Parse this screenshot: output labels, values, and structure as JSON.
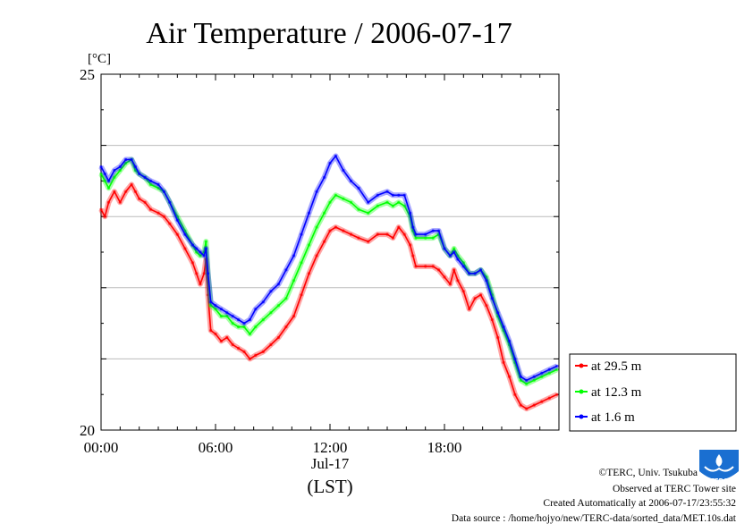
{
  "chart_data": {
    "type": "line",
    "title": "Air Temperature / 2006-07-17",
    "y_unit": "[°C]",
    "ylim": [
      20,
      25
    ],
    "y_ticks": [
      "25",
      "20"
    ],
    "xlim": [
      "00:00",
      "24:00"
    ],
    "x_ticks": [
      {
        "hour": 0,
        "label": "00:00"
      },
      {
        "hour": 6,
        "label": "06:00"
      },
      {
        "hour": 12,
        "label": "12:00"
      },
      {
        "hour": 18,
        "label": "18:00"
      }
    ],
    "x_date_label": "Jul-17",
    "x_axis_label": "(LST)",
    "grid": "horizontal",
    "legend_position": "right",
    "series": [
      {
        "name": "at 29.5 m",
        "color": "#ff0000",
        "points": [
          [
            0.0,
            23.1
          ],
          [
            0.2,
            23.0
          ],
          [
            0.4,
            23.2
          ],
          [
            0.7,
            23.35
          ],
          [
            1.0,
            23.2
          ],
          [
            1.3,
            23.35
          ],
          [
            1.6,
            23.45
          ],
          [
            1.8,
            23.35
          ],
          [
            2.0,
            23.25
          ],
          [
            2.3,
            23.2
          ],
          [
            2.6,
            23.1
          ],
          [
            3.0,
            23.05
          ],
          [
            3.3,
            23.0
          ],
          [
            3.6,
            22.9
          ],
          [
            4.0,
            22.75
          ],
          [
            4.4,
            22.55
          ],
          [
            4.8,
            22.35
          ],
          [
            5.0,
            22.2
          ],
          [
            5.2,
            22.05
          ],
          [
            5.4,
            22.2
          ],
          [
            5.5,
            22.4
          ],
          [
            5.6,
            21.9
          ],
          [
            5.75,
            21.4
          ],
          [
            6.0,
            21.35
          ],
          [
            6.3,
            21.25
          ],
          [
            6.6,
            21.3
          ],
          [
            6.9,
            21.2
          ],
          [
            7.2,
            21.15
          ],
          [
            7.5,
            21.1
          ],
          [
            7.8,
            21.0
          ],
          [
            8.1,
            21.05
          ],
          [
            8.5,
            21.1
          ],
          [
            8.9,
            21.2
          ],
          [
            9.3,
            21.3
          ],
          [
            9.7,
            21.45
          ],
          [
            10.1,
            21.6
          ],
          [
            10.5,
            21.9
          ],
          [
            10.9,
            22.2
          ],
          [
            11.3,
            22.45
          ],
          [
            11.7,
            22.65
          ],
          [
            12.0,
            22.8
          ],
          [
            12.3,
            22.85
          ],
          [
            12.7,
            22.8
          ],
          [
            13.1,
            22.75
          ],
          [
            13.5,
            22.7
          ],
          [
            14.0,
            22.65
          ],
          [
            14.5,
            22.75
          ],
          [
            15.0,
            22.75
          ],
          [
            15.3,
            22.7
          ],
          [
            15.6,
            22.85
          ],
          [
            15.9,
            22.75
          ],
          [
            16.2,
            22.6
          ],
          [
            16.35,
            22.45
          ],
          [
            16.5,
            22.3
          ],
          [
            17.0,
            22.3
          ],
          [
            17.4,
            22.3
          ],
          [
            17.7,
            22.25
          ],
          [
            18.0,
            22.15
          ],
          [
            18.3,
            22.05
          ],
          [
            18.5,
            22.25
          ],
          [
            18.7,
            22.1
          ],
          [
            19.0,
            21.95
          ],
          [
            19.3,
            21.7
          ],
          [
            19.6,
            21.85
          ],
          [
            19.9,
            21.9
          ],
          [
            20.2,
            21.75
          ],
          [
            20.5,
            21.55
          ],
          [
            20.8,
            21.3
          ],
          [
            21.1,
            20.95
          ],
          [
            21.4,
            20.75
          ],
          [
            21.7,
            20.5
          ],
          [
            22.0,
            20.35
          ],
          [
            22.3,
            20.3
          ],
          [
            22.7,
            20.35
          ],
          [
            23.1,
            20.4
          ],
          [
            23.5,
            20.45
          ],
          [
            23.9,
            20.5
          ]
        ]
      },
      {
        "name": "at 12.3 m",
        "color": "#00ff00",
        "points": [
          [
            0.0,
            23.6
          ],
          [
            0.2,
            23.5
          ],
          [
            0.4,
            23.4
          ],
          [
            0.7,
            23.55
          ],
          [
            1.0,
            23.65
          ],
          [
            1.3,
            23.75
          ],
          [
            1.6,
            23.8
          ],
          [
            1.8,
            23.65
          ],
          [
            2.0,
            23.6
          ],
          [
            2.3,
            23.55
          ],
          [
            2.6,
            23.45
          ],
          [
            3.0,
            23.4
          ],
          [
            3.3,
            23.35
          ],
          [
            3.6,
            23.2
          ],
          [
            4.0,
            23.0
          ],
          [
            4.4,
            22.8
          ],
          [
            4.8,
            22.6
          ],
          [
            5.0,
            22.5
          ],
          [
            5.2,
            22.45
          ],
          [
            5.4,
            22.5
          ],
          [
            5.5,
            22.65
          ],
          [
            5.6,
            22.2
          ],
          [
            5.75,
            21.75
          ],
          [
            6.0,
            21.7
          ],
          [
            6.3,
            21.6
          ],
          [
            6.6,
            21.6
          ],
          [
            6.9,
            21.5
          ],
          [
            7.2,
            21.45
          ],
          [
            7.5,
            21.45
          ],
          [
            7.8,
            21.35
          ],
          [
            8.1,
            21.45
          ],
          [
            8.5,
            21.55
          ],
          [
            8.9,
            21.65
          ],
          [
            9.3,
            21.75
          ],
          [
            9.7,
            21.85
          ],
          [
            10.1,
            22.1
          ],
          [
            10.5,
            22.35
          ],
          [
            10.9,
            22.6
          ],
          [
            11.3,
            22.85
          ],
          [
            11.7,
            23.05
          ],
          [
            12.0,
            23.2
          ],
          [
            12.3,
            23.3
          ],
          [
            12.7,
            23.25
          ],
          [
            13.1,
            23.2
          ],
          [
            13.5,
            23.1
          ],
          [
            14.0,
            23.05
          ],
          [
            14.5,
            23.15
          ],
          [
            15.0,
            23.2
          ],
          [
            15.3,
            23.15
          ],
          [
            15.6,
            23.2
          ],
          [
            15.9,
            23.15
          ],
          [
            16.2,
            23.0
          ],
          [
            16.35,
            22.8
          ],
          [
            16.5,
            22.7
          ],
          [
            17.0,
            22.7
          ],
          [
            17.4,
            22.7
          ],
          [
            17.7,
            22.75
          ],
          [
            18.0,
            22.55
          ],
          [
            18.3,
            22.45
          ],
          [
            18.5,
            22.55
          ],
          [
            18.7,
            22.45
          ],
          [
            19.0,
            22.35
          ],
          [
            19.3,
            22.2
          ],
          [
            19.6,
            22.2
          ],
          [
            19.9,
            22.25
          ],
          [
            20.2,
            22.15
          ],
          [
            20.5,
            21.9
          ],
          [
            20.8,
            21.6
          ],
          [
            21.1,
            21.4
          ],
          [
            21.4,
            21.2
          ],
          [
            21.7,
            20.95
          ],
          [
            22.0,
            20.7
          ],
          [
            22.3,
            20.65
          ],
          [
            22.7,
            20.7
          ],
          [
            23.1,
            20.75
          ],
          [
            23.5,
            20.8
          ],
          [
            23.9,
            20.85
          ]
        ]
      },
      {
        "name": "at 1.6 m",
        "color": "#0000ff",
        "points": [
          [
            0.0,
            23.7
          ],
          [
            0.2,
            23.6
          ],
          [
            0.4,
            23.5
          ],
          [
            0.7,
            23.65
          ],
          [
            1.0,
            23.7
          ],
          [
            1.3,
            23.8
          ],
          [
            1.6,
            23.8
          ],
          [
            1.8,
            23.7
          ],
          [
            2.0,
            23.6
          ],
          [
            2.3,
            23.55
          ],
          [
            2.6,
            23.5
          ],
          [
            3.0,
            23.45
          ],
          [
            3.3,
            23.35
          ],
          [
            3.6,
            23.2
          ],
          [
            4.0,
            22.95
          ],
          [
            4.4,
            22.75
          ],
          [
            4.8,
            22.6
          ],
          [
            5.0,
            22.55
          ],
          [
            5.2,
            22.5
          ],
          [
            5.4,
            22.45
          ],
          [
            5.5,
            22.55
          ],
          [
            5.6,
            22.2
          ],
          [
            5.75,
            21.8
          ],
          [
            6.0,
            21.75
          ],
          [
            6.3,
            21.7
          ],
          [
            6.6,
            21.65
          ],
          [
            6.9,
            21.6
          ],
          [
            7.2,
            21.55
          ],
          [
            7.5,
            21.5
          ],
          [
            7.8,
            21.55
          ],
          [
            8.1,
            21.7
          ],
          [
            8.5,
            21.8
          ],
          [
            8.9,
            21.95
          ],
          [
            9.3,
            22.05
          ],
          [
            9.7,
            22.25
          ],
          [
            10.1,
            22.45
          ],
          [
            10.5,
            22.75
          ],
          [
            10.9,
            23.05
          ],
          [
            11.3,
            23.35
          ],
          [
            11.7,
            23.55
          ],
          [
            12.0,
            23.75
          ],
          [
            12.3,
            23.85
          ],
          [
            12.7,
            23.65
          ],
          [
            13.1,
            23.5
          ],
          [
            13.5,
            23.4
          ],
          [
            14.0,
            23.2
          ],
          [
            14.5,
            23.3
          ],
          [
            15.0,
            23.35
          ],
          [
            15.3,
            23.3
          ],
          [
            15.6,
            23.3
          ],
          [
            15.9,
            23.3
          ],
          [
            16.2,
            23.05
          ],
          [
            16.35,
            22.85
          ],
          [
            16.5,
            22.75
          ],
          [
            17.0,
            22.75
          ],
          [
            17.4,
            22.8
          ],
          [
            17.7,
            22.8
          ],
          [
            18.0,
            22.55
          ],
          [
            18.3,
            22.45
          ],
          [
            18.5,
            22.5
          ],
          [
            18.7,
            22.4
          ],
          [
            19.0,
            22.3
          ],
          [
            19.3,
            22.2
          ],
          [
            19.6,
            22.2
          ],
          [
            19.9,
            22.25
          ],
          [
            20.2,
            22.1
          ],
          [
            20.5,
            21.85
          ],
          [
            20.8,
            21.65
          ],
          [
            21.1,
            21.45
          ],
          [
            21.4,
            21.25
          ],
          [
            21.7,
            21.0
          ],
          [
            22.0,
            20.75
          ],
          [
            22.3,
            20.7
          ],
          [
            22.7,
            20.75
          ],
          [
            23.1,
            20.8
          ],
          [
            23.5,
            20.85
          ],
          [
            23.9,
            20.9
          ]
        ]
      }
    ]
  },
  "footer": {
    "copyright": "©TERC, Univ. Tsukuba",
    "observed": "Observed at TERC Tower site",
    "created": "Created Automatically at 2006-07-17/23:55:32",
    "source": "Data source : /home/hojyo/new/TERC-data/sorted_data/MET.10s.dat"
  },
  "logo": {
    "icon": "terc-logo-icon",
    "text": "TERC",
    "color": "#1a6fd1"
  }
}
